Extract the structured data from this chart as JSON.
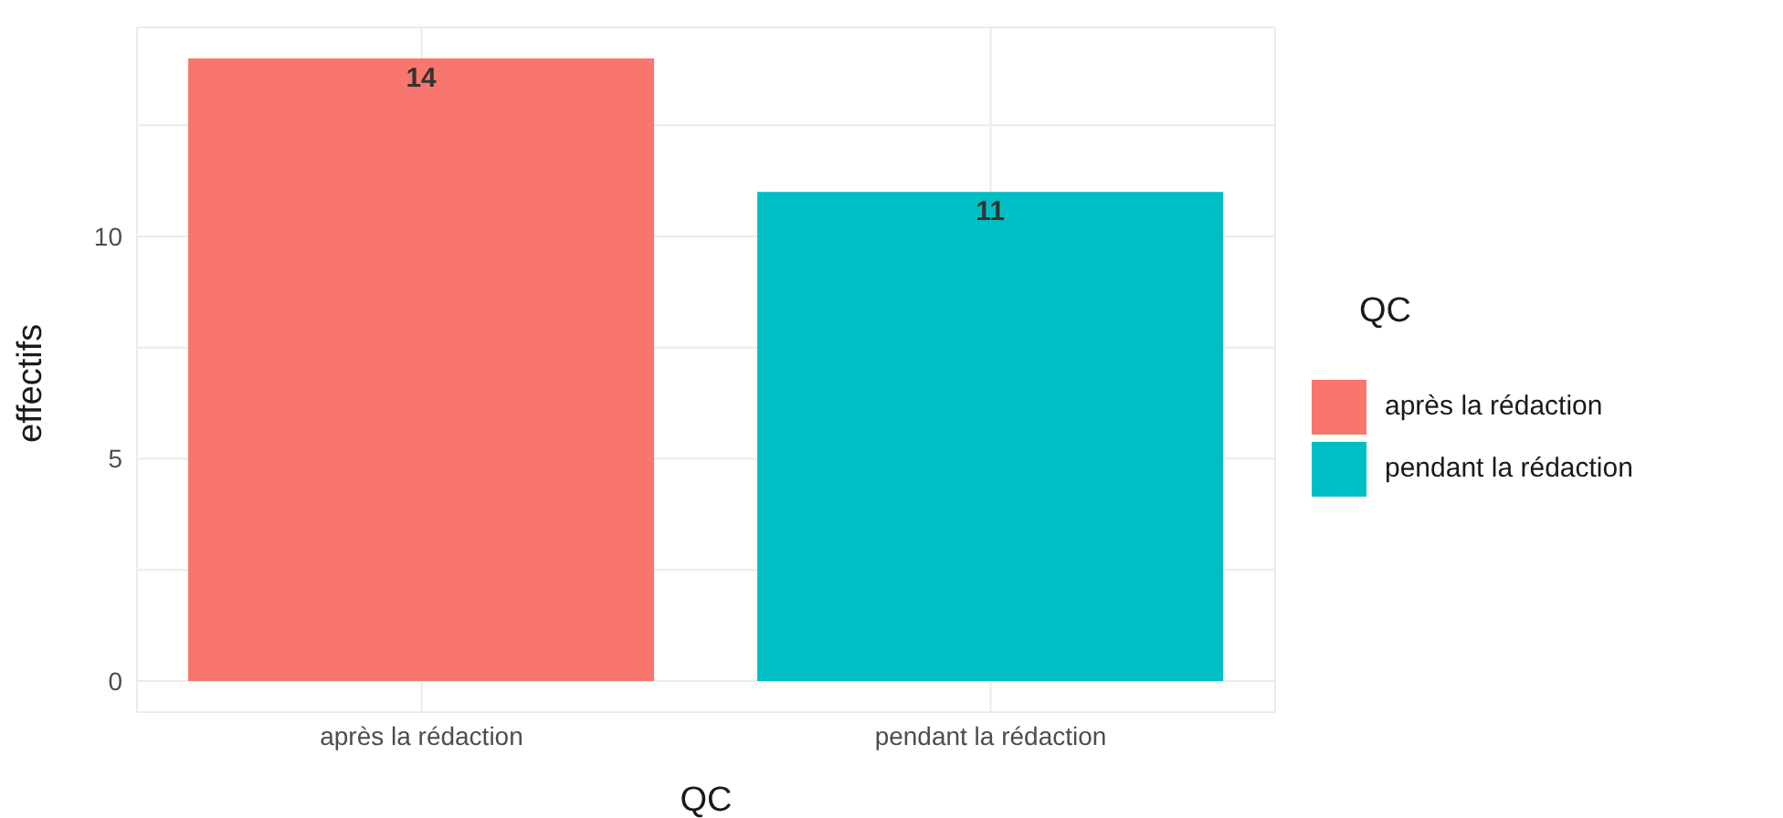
{
  "chart_data": {
    "type": "bar",
    "xlabel": "QC",
    "ylabel": "effectifs",
    "legend_title": "QC",
    "categories": [
      "après la rédaction",
      "pendant la rédaction"
    ],
    "series": [
      {
        "name": "après la rédaction",
        "color": "#f8766d",
        "values": [
          14,
          null
        ]
      },
      {
        "name": "pendant la rédaction",
        "color": "#00bfc4",
        "values": [
          null,
          11
        ]
      }
    ],
    "ylim": [
      -0.7,
      14.7
    ],
    "yticks": [
      0,
      {
        "value": 2.5,
        "label": null
      },
      5,
      {
        "value": 7.5,
        "label": null
      },
      10,
      {
        "value": 12.5,
        "label": null
      }
    ],
    "grid": true,
    "legend": "right",
    "data_labels": true
  }
}
